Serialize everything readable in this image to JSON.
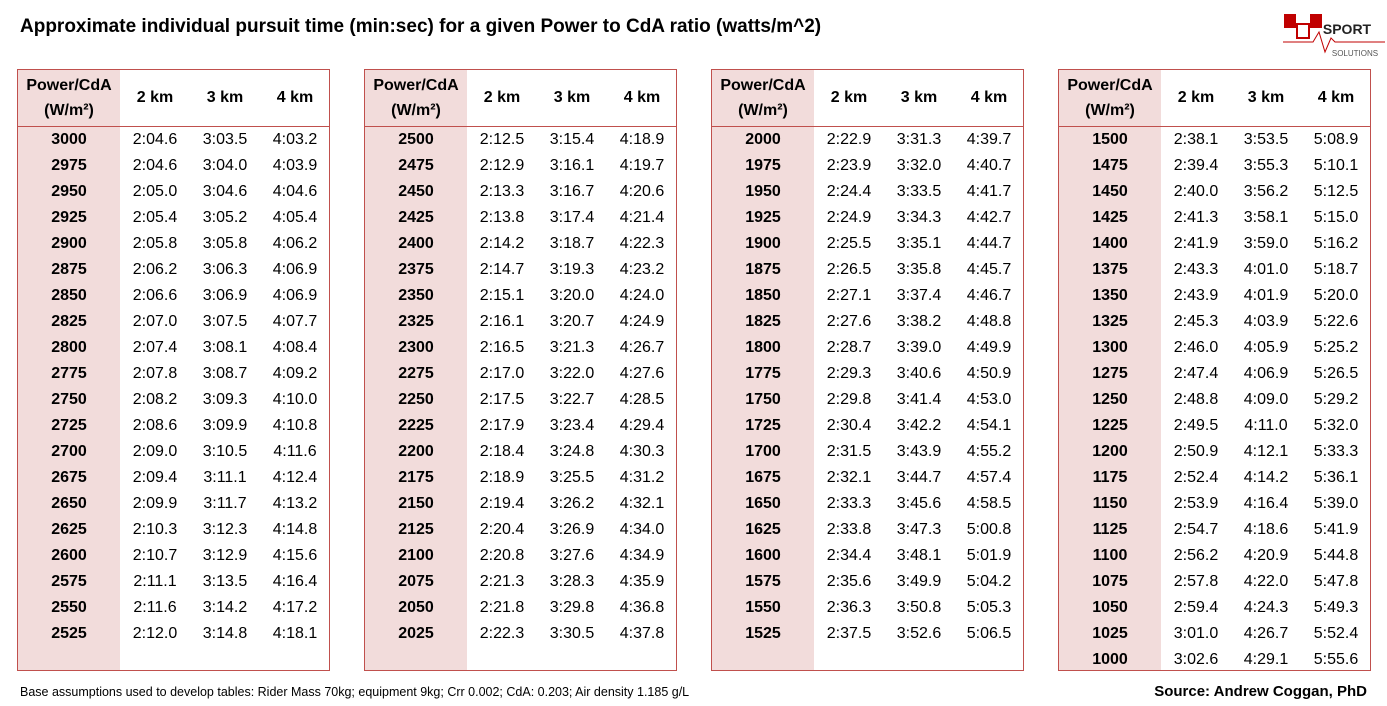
{
  "title": "Approximate individual pursuit time (min:sec) for a given Power to CdA ratio (watts/m^2)",
  "logo": {
    "word": "SPORT",
    "subword": "SOLUTIONS"
  },
  "columns": {
    "power_line1": "Power/CdA",
    "power_line2": "(W/m²)",
    "distances": [
      "2 km",
      "3 km",
      "4 km"
    ]
  },
  "tables": [
    {
      "rows": [
        [
          3000,
          "2:04.6",
          "3:03.5",
          "4:03.2"
        ],
        [
          2975,
          "2:04.6",
          "3:04.0",
          "4:03.9"
        ],
        [
          2950,
          "2:05.0",
          "3:04.6",
          "4:04.6"
        ],
        [
          2925,
          "2:05.4",
          "3:05.2",
          "4:05.4"
        ],
        [
          2900,
          "2:05.8",
          "3:05.8",
          "4:06.2"
        ],
        [
          2875,
          "2:06.2",
          "3:06.3",
          "4:06.9"
        ],
        [
          2850,
          "2:06.6",
          "3:06.9",
          "4:06.9"
        ],
        [
          2825,
          "2:07.0",
          "3:07.5",
          "4:07.7"
        ],
        [
          2800,
          "2:07.4",
          "3:08.1",
          "4:08.4"
        ],
        [
          2775,
          "2:07.8",
          "3:08.7",
          "4:09.2"
        ],
        [
          2750,
          "2:08.2",
          "3:09.3",
          "4:10.0"
        ],
        [
          2725,
          "2:08.6",
          "3:09.9",
          "4:10.8"
        ],
        [
          2700,
          "2:09.0",
          "3:10.5",
          "4:11.6"
        ],
        [
          2675,
          "2:09.4",
          "3:11.1",
          "4:12.4"
        ],
        [
          2650,
          "2:09.9",
          "3:11.7",
          "4:13.2"
        ],
        [
          2625,
          "2:10.3",
          "3:12.3",
          "4:14.8"
        ],
        [
          2600,
          "2:10.7",
          "3:12.9",
          "4:15.6"
        ],
        [
          2575,
          "2:11.1",
          "3:13.5",
          "4:16.4"
        ],
        [
          2550,
          "2:11.6",
          "3:14.2",
          "4:17.2"
        ],
        [
          2525,
          "2:12.0",
          "3:14.8",
          "4:18.1"
        ]
      ]
    },
    {
      "rows": [
        [
          2500,
          "2:12.5",
          "3:15.4",
          "4:18.9"
        ],
        [
          2475,
          "2:12.9",
          "3:16.1",
          "4:19.7"
        ],
        [
          2450,
          "2:13.3",
          "3:16.7",
          "4:20.6"
        ],
        [
          2425,
          "2:13.8",
          "3:17.4",
          "4:21.4"
        ],
        [
          2400,
          "2:14.2",
          "3:18.7",
          "4:22.3"
        ],
        [
          2375,
          "2:14.7",
          "3:19.3",
          "4:23.2"
        ],
        [
          2350,
          "2:15.1",
          "3:20.0",
          "4:24.0"
        ],
        [
          2325,
          "2:16.1",
          "3:20.7",
          "4:24.9"
        ],
        [
          2300,
          "2:16.5",
          "3:21.3",
          "4:26.7"
        ],
        [
          2275,
          "2:17.0",
          "3:22.0",
          "4:27.6"
        ],
        [
          2250,
          "2:17.5",
          "3:22.7",
          "4:28.5"
        ],
        [
          2225,
          "2:17.9",
          "3:23.4",
          "4:29.4"
        ],
        [
          2200,
          "2:18.4",
          "3:24.8",
          "4:30.3"
        ],
        [
          2175,
          "2:18.9",
          "3:25.5",
          "4:31.2"
        ],
        [
          2150,
          "2:19.4",
          "3:26.2",
          "4:32.1"
        ],
        [
          2125,
          "2:20.4",
          "3:26.9",
          "4:34.0"
        ],
        [
          2100,
          "2:20.8",
          "3:27.6",
          "4:34.9"
        ],
        [
          2075,
          "2:21.3",
          "3:28.3",
          "4:35.9"
        ],
        [
          2050,
          "2:21.8",
          "3:29.8",
          "4:36.8"
        ],
        [
          2025,
          "2:22.3",
          "3:30.5",
          "4:37.8"
        ]
      ]
    },
    {
      "rows": [
        [
          2000,
          "2:22.9",
          "3:31.3",
          "4:39.7"
        ],
        [
          1975,
          "2:23.9",
          "3:32.0",
          "4:40.7"
        ],
        [
          1950,
          "2:24.4",
          "3:33.5",
          "4:41.7"
        ],
        [
          1925,
          "2:24.9",
          "3:34.3",
          "4:42.7"
        ],
        [
          1900,
          "2:25.5",
          "3:35.1",
          "4:44.7"
        ],
        [
          1875,
          "2:26.5",
          "3:35.8",
          "4:45.7"
        ],
        [
          1850,
          "2:27.1",
          "3:37.4",
          "4:46.7"
        ],
        [
          1825,
          "2:27.6",
          "3:38.2",
          "4:48.8"
        ],
        [
          1800,
          "2:28.7",
          "3:39.0",
          "4:49.9"
        ],
        [
          1775,
          "2:29.3",
          "3:40.6",
          "4:50.9"
        ],
        [
          1750,
          "2:29.8",
          "3:41.4",
          "4:53.0"
        ],
        [
          1725,
          "2:30.4",
          "3:42.2",
          "4:54.1"
        ],
        [
          1700,
          "2:31.5",
          "3:43.9",
          "4:55.2"
        ],
        [
          1675,
          "2:32.1",
          "3:44.7",
          "4:57.4"
        ],
        [
          1650,
          "2:33.3",
          "3:45.6",
          "4:58.5"
        ],
        [
          1625,
          "2:33.8",
          "3:47.3",
          "5:00.8"
        ],
        [
          1600,
          "2:34.4",
          "3:48.1",
          "5:01.9"
        ],
        [
          1575,
          "2:35.6",
          "3:49.9",
          "5:04.2"
        ],
        [
          1550,
          "2:36.3",
          "3:50.8",
          "5:05.3"
        ],
        [
          1525,
          "2:37.5",
          "3:52.6",
          "5:06.5"
        ]
      ]
    },
    {
      "rows": [
        [
          1500,
          "2:38.1",
          "3:53.5",
          "5:08.9"
        ],
        [
          1475,
          "2:39.4",
          "3:55.3",
          "5:10.1"
        ],
        [
          1450,
          "2:40.0",
          "3:56.2",
          "5:12.5"
        ],
        [
          1425,
          "2:41.3",
          "3:58.1",
          "5:15.0"
        ],
        [
          1400,
          "2:41.9",
          "3:59.0",
          "5:16.2"
        ],
        [
          1375,
          "2:43.3",
          "4:01.0",
          "5:18.7"
        ],
        [
          1350,
          "2:43.9",
          "4:01.9",
          "5:20.0"
        ],
        [
          1325,
          "2:45.3",
          "4:03.9",
          "5:22.6"
        ],
        [
          1300,
          "2:46.0",
          "4:05.9",
          "5:25.2"
        ],
        [
          1275,
          "2:47.4",
          "4:06.9",
          "5:26.5"
        ],
        [
          1250,
          "2:48.8",
          "4:09.0",
          "5:29.2"
        ],
        [
          1225,
          "2:49.5",
          "4:11.0",
          "5:32.0"
        ],
        [
          1200,
          "2:50.9",
          "4:12.1",
          "5:33.3"
        ],
        [
          1175,
          "2:52.4",
          "4:14.2",
          "5:36.1"
        ],
        [
          1150,
          "2:53.9",
          "4:16.4",
          "5:39.0"
        ],
        [
          1125,
          "2:54.7",
          "4:18.6",
          "5:41.9"
        ],
        [
          1100,
          "2:56.2",
          "4:20.9",
          "5:44.8"
        ],
        [
          1075,
          "2:57.8",
          "4:22.0",
          "5:47.8"
        ],
        [
          1050,
          "2:59.4",
          "4:24.3",
          "5:49.3"
        ],
        [
          1025,
          "3:01.0",
          "4:26.7",
          "5:52.4"
        ],
        [
          1000,
          "3:02.6",
          "4:29.1",
          "5:55.6"
        ]
      ]
    }
  ],
  "footer": {
    "note": "Base assumptions used to develop tables: Rider Mass 70kg; equipment 9kg; Crr 0.002; CdA: 0.203; Air density 1.185 g/L",
    "source": "Source: Andrew Coggan, PhD"
  }
}
